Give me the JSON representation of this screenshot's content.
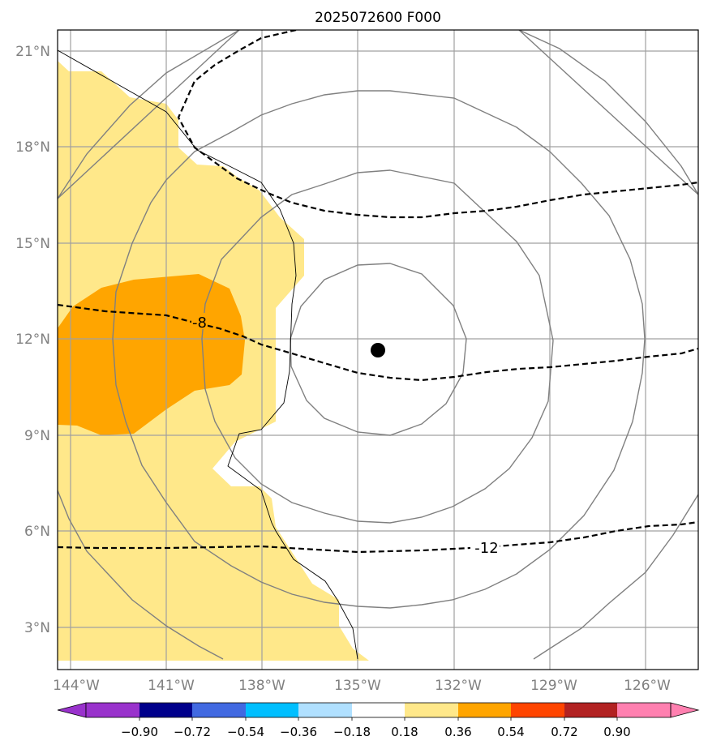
{
  "title": "2025072600 F000",
  "lon_labels": [
    "144°W",
    "141°W",
    "138°W",
    "135°W",
    "132°W",
    "129°W",
    "126°W"
  ],
  "lat_labels": [
    "21°N",
    "18°N",
    "15°N",
    "12°N",
    "9°N",
    "6°N",
    "3°N"
  ],
  "contour_labels": [
    "-8",
    "-12"
  ],
  "colorbar": {
    "labels": [
      "−0.90",
      "−0.72",
      "−0.54",
      "−0.36",
      "−0.18",
      "0.18",
      "0.36",
      "0.54",
      "0.72",
      "0.90"
    ],
    "colors": [
      "#9932cc",
      "#00008b",
      "#4169e1",
      "#00bfff",
      "#b0e0ff",
      "#ffffff",
      "#ffe88a",
      "#ffa500",
      "#ff4500",
      "#b22222",
      "#ff80b0"
    ]
  },
  "colors": {
    "light_fill": "#ffe88a",
    "dark_fill": "#ffa500",
    "grid": "#a0a0a0",
    "circle": "#808080"
  },
  "storm_center": {
    "lon": -134.4,
    "lat": 11.6
  }
}
